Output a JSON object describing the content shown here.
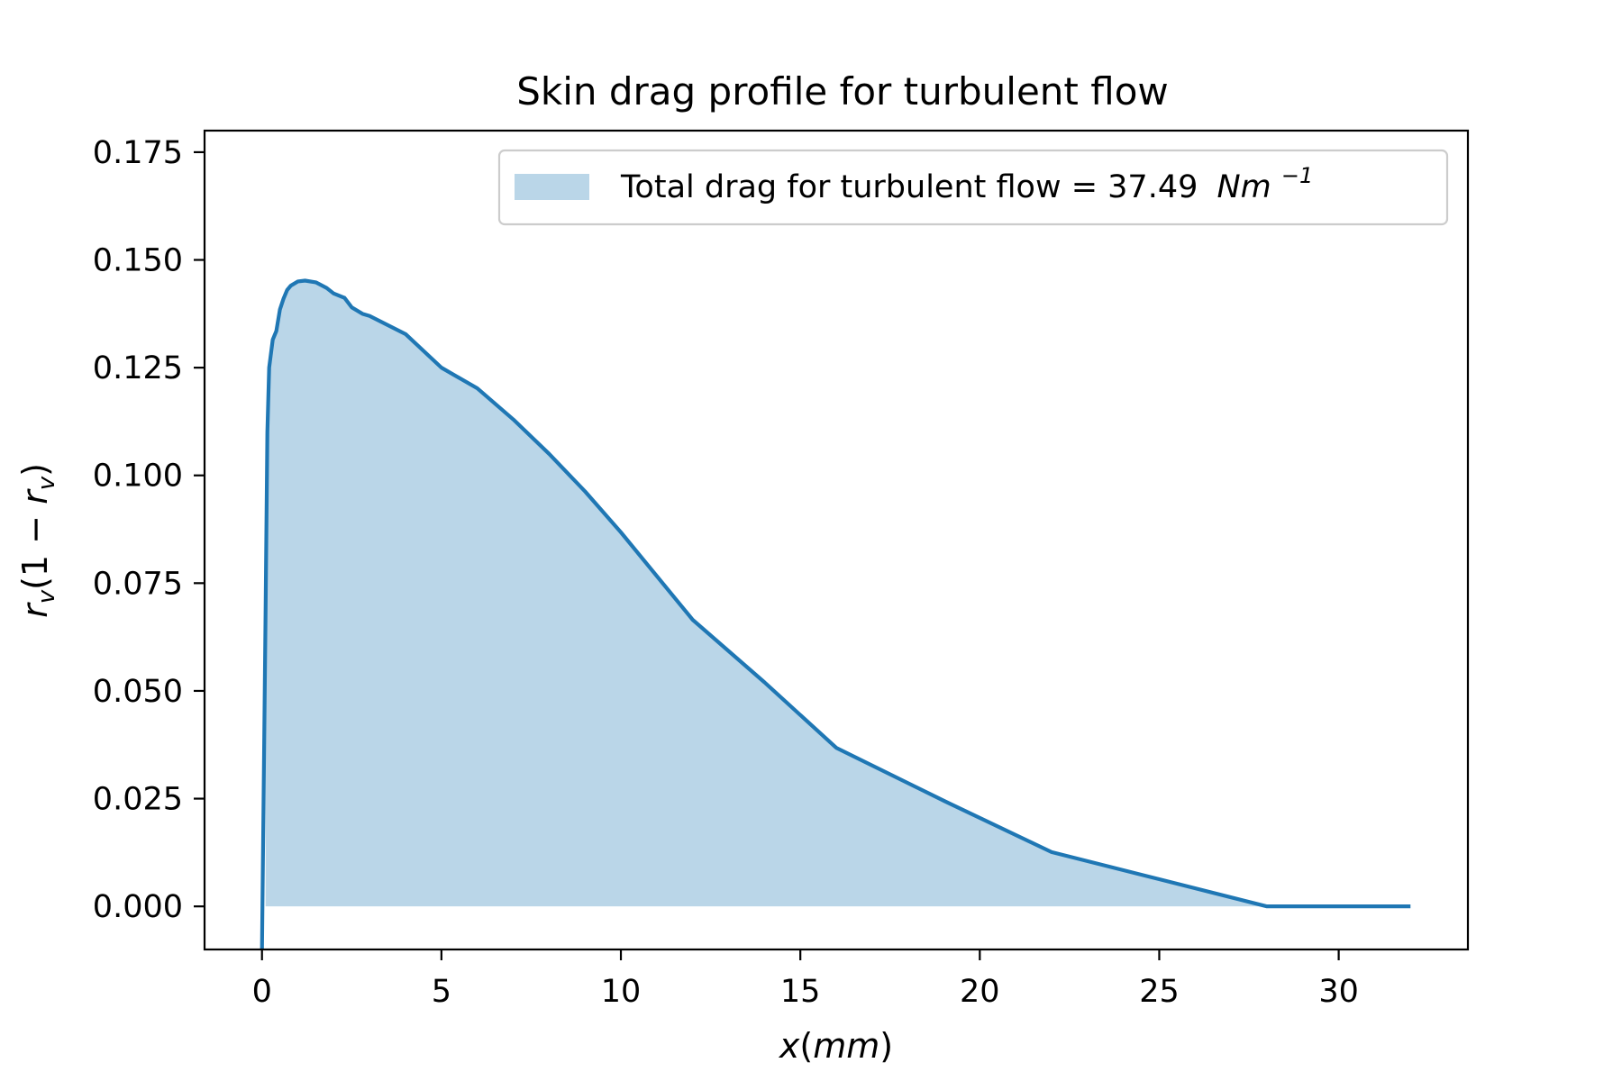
{
  "chart_data": {
    "type": "area",
    "title": "Skin drag profile for turbulent flow",
    "xlabel": "x(mm)",
    "ylabel": "r_v(1 − r_v)",
    "xlim": [
      -1.6,
      33.6
    ],
    "ylim": [
      -0.01,
      0.18
    ],
    "x_ticks": [
      0,
      5,
      10,
      15,
      20,
      25,
      30
    ],
    "x_tick_labels": [
      "0",
      "5",
      "10",
      "15",
      "20",
      "25",
      "30"
    ],
    "y_ticks": [
      0.0,
      0.025,
      0.05,
      0.075,
      0.1,
      0.125,
      0.15,
      0.175
    ],
    "y_tick_labels": [
      "0.000",
      "0.025",
      "0.050",
      "0.075",
      "0.100",
      "0.125",
      "0.150",
      "0.175"
    ],
    "grid": false,
    "legend": {
      "placement": "upper right",
      "entries": [
        {
          "text": "Total drag for turbulent flow = 37.49",
          "unit_base": "Nm",
          "unit_exp": "−1"
        }
      ]
    },
    "colors": {
      "line": "#1f77b4",
      "fill": "#bad6e8"
    },
    "series": [
      {
        "name": "Total drag for turbulent flow = 37.49 Nm^-1",
        "x": [
          0.0,
          0.1,
          0.15,
          0.2,
          0.3,
          0.4,
          0.5,
          0.6,
          0.7,
          0.8,
          1.0,
          1.2,
          1.5,
          1.8,
          2.0,
          2.3,
          2.5,
          2.8,
          3.0,
          4.0,
          5.0,
          6.0,
          7.0,
          8.0,
          9.0,
          10.0,
          12.0,
          14.0,
          16.0,
          19.0,
          22.0,
          25.0,
          28.0,
          30.0,
          32.0
        ],
        "y": [
          -0.01,
          0.068,
          0.11,
          0.125,
          0.1315,
          0.1335,
          0.1385,
          0.141,
          0.143,
          0.144,
          0.145,
          0.1452,
          0.1448,
          0.1435,
          0.1422,
          0.1412,
          0.139,
          0.1375,
          0.137,
          0.1328,
          0.125,
          0.1202,
          0.113,
          0.105,
          0.0963,
          0.0868,
          0.0665,
          0.052,
          0.0368,
          0.0245,
          0.0126,
          0.0063,
          0.0,
          0.0,
          0.0
        ],
        "fill_x": [
          0.1,
          0.15,
          0.2,
          0.3,
          0.4,
          0.5,
          0.6,
          0.7,
          0.8,
          1.0,
          1.2,
          1.5,
          1.8,
          2.0,
          2.3,
          2.5,
          2.8,
          3.0,
          4.0,
          5.0,
          6.0,
          7.0,
          8.0,
          9.0,
          10.0,
          12.0,
          14.0,
          16.0,
          19.0,
          22.0,
          25.0,
          28.0
        ],
        "fill_y": [
          0.068,
          0.11,
          0.125,
          0.1315,
          0.1335,
          0.1385,
          0.141,
          0.143,
          0.144,
          0.145,
          0.1452,
          0.1448,
          0.1435,
          0.1422,
          0.1412,
          0.139,
          0.1375,
          0.137,
          0.1328,
          0.125,
          0.1202,
          0.113,
          0.105,
          0.0963,
          0.0868,
          0.0665,
          0.052,
          0.0368,
          0.0245,
          0.0126,
          0.0063,
          0.0
        ]
      }
    ]
  }
}
